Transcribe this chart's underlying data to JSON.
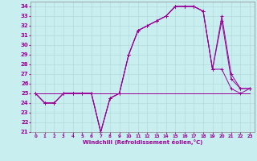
{
  "xlabel": "Windchill (Refroidissement éolien,°C)",
  "bg_color": "#c8eef0",
  "grid_color": "#b0d8d8",
  "line_color": "#990099",
  "xlim": [
    -0.5,
    23.5
  ],
  "ylim": [
    21,
    34.5
  ],
  "xticks": [
    0,
    1,
    2,
    3,
    4,
    5,
    6,
    7,
    8,
    9,
    10,
    11,
    12,
    13,
    14,
    15,
    16,
    17,
    18,
    19,
    20,
    21,
    22,
    23
  ],
  "yticks": [
    21,
    22,
    23,
    24,
    25,
    26,
    27,
    28,
    29,
    30,
    31,
    32,
    33,
    34
  ],
  "series1_x": [
    0,
    1,
    2,
    3,
    4,
    5,
    6,
    7,
    8,
    9,
    10,
    11,
    12,
    13,
    14,
    15,
    16,
    17,
    18,
    19,
    20,
    21,
    22,
    23
  ],
  "series1_y": [
    25,
    24,
    24,
    25,
    25,
    25,
    25,
    21,
    24.5,
    25,
    29,
    31.5,
    32,
    32.5,
    33,
    34,
    34,
    34,
    33.5,
    27.5,
    27.5,
    25.5,
    25,
    25.5
  ],
  "series2_x": [
    0,
    1,
    2,
    3,
    4,
    5,
    6,
    7,
    8,
    9,
    10,
    11,
    12,
    13,
    14,
    15,
    16,
    17,
    18,
    19,
    20,
    21,
    22,
    23
  ],
  "series2_y": [
    25,
    24,
    24,
    25,
    25,
    25,
    25,
    21,
    24.5,
    25,
    29,
    31.5,
    32,
    32.5,
    33,
    34,
    34,
    34,
    33.5,
    27.5,
    33,
    27,
    25.5,
    25.5
  ],
  "series3_x": [
    0,
    1,
    2,
    3,
    4,
    5,
    6,
    7,
    8,
    9,
    10,
    11,
    12,
    13,
    14,
    15,
    16,
    17,
    18,
    19,
    20,
    21,
    22,
    23
  ],
  "series3_y": [
    25,
    24,
    24,
    25,
    25,
    25,
    25,
    21,
    24.5,
    25,
    29,
    31.5,
    32,
    32.5,
    33,
    34,
    34,
    34,
    33.5,
    27.5,
    32.5,
    26.5,
    25.5,
    25.5
  ],
  "flat_x": [
    0,
    1,
    2,
    3,
    4,
    5,
    6,
    7,
    8,
    9,
    10,
    11,
    12,
    13,
    14,
    15,
    16,
    17,
    18,
    19,
    20,
    21,
    22,
    23
  ],
  "flat_y": [
    25,
    25,
    25,
    25,
    25,
    25,
    25,
    25,
    25,
    25,
    25,
    25,
    25,
    25,
    25,
    25,
    25,
    25,
    25,
    25,
    25,
    25,
    25,
    25
  ]
}
